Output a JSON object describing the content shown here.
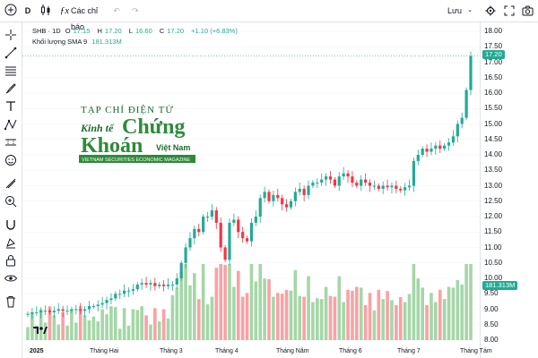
{
  "toolbar": {
    "interval": "D",
    "indicators_label": "Các chỉ báo",
    "save_label": "Lưu"
  },
  "legend": {
    "symbol": "SHB · 1D",
    "open_label": "O",
    "open": "17.15",
    "high_label": "H",
    "high": "17.20",
    "low_label": "L",
    "low": "16.60",
    "close_label": "C",
    "close": "17.20",
    "change": "+1.10 (+6.83%)",
    "volume_label": "Khối lượng SMA 9",
    "volume": "181.313M"
  },
  "watermark": {
    "line1": "TẠP CHÍ ĐIỆN TỬ",
    "line2a": "Kinh tế",
    "line2b": "Chứng",
    "line3a": "Khoán",
    "line3b": "Việt Nam",
    "line4": "VIETNAM SECURITIES ECONOMIC MAGAZINE"
  },
  "price_axis": {
    "labels": [
      "18.00",
      "17.50",
      "17.00",
      "16.50",
      "16.00",
      "15.50",
      "15.00",
      "14.50",
      "14.00",
      "13.50",
      "13.00",
      "12.50",
      "12.00",
      "11.50",
      "11.00",
      "10.50",
      "10.00",
      "9.50",
      "9.00",
      "8.50",
      "8.00"
    ],
    "last_price_tag": "17.20",
    "volume_tag": "181.313M"
  },
  "time_axis": [
    "2025",
    "Tháng Hai",
    "Tháng 3",
    "Tháng 4",
    "Tháng Năm",
    "Tháng 6",
    "Tháng 7",
    "Tháng Tám"
  ],
  "colors": {
    "up": "#22ab94",
    "down": "#f23645",
    "vol_up": "#a5d6a7",
    "vol_down": "#faa1a4"
  },
  "chart_data": {
    "type": "candlestick",
    "symbol": "SHB",
    "interval": "1D",
    "x_labels": [
      "2025",
      "Tháng Hai",
      "Tháng 3",
      "Tháng 4",
      "Tháng Năm",
      "Tháng 6",
      "Tháng 7",
      "Tháng Tám"
    ],
    "ylim": [
      8.0,
      18.0
    ],
    "close_series": [
      8.85,
      8.9,
      8.9,
      8.95,
      8.95,
      8.9,
      8.95,
      9.0,
      8.95,
      8.95,
      9.0,
      9.0,
      8.95,
      9.0,
      9.1,
      9.1,
      9.15,
      9.2,
      9.3,
      9.35,
      9.5,
      9.5,
      9.6,
      9.6,
      9.65,
      9.8,
      9.85,
      9.8,
      9.85,
      9.75,
      9.8,
      9.75,
      9.8,
      9.8,
      10.0,
      10.5,
      11.0,
      11.3,
      11.6,
      11.5,
      12.0,
      12.0,
      12.2,
      11.8,
      11.0,
      10.6,
      11.8,
      11.9,
      11.5,
      11.3,
      11.2,
      11.8,
      12.0,
      12.6,
      12.8,
      12.5,
      12.7,
      12.6,
      12.4,
      12.3,
      12.5,
      12.8,
      12.9,
      12.7,
      13.0,
      13.1,
      13.1,
      13.2,
      13.3,
      13.2,
      13.0,
      13.3,
      13.4,
      13.3,
      13.1,
      13.0,
      13.2,
      13.1,
      13.0,
      13.0,
      12.9,
      13.0,
      12.95,
      13.0,
      12.9,
      12.85,
      12.95,
      13.0,
      13.8,
      14.0,
      14.2,
      14.1,
      14.2,
      14.3,
      14.2,
      14.3,
      14.4,
      14.6,
      15.0,
      15.2,
      16.1,
      17.2
    ],
    "last_close": 17.2,
    "volume_sma9": "181.313M"
  }
}
